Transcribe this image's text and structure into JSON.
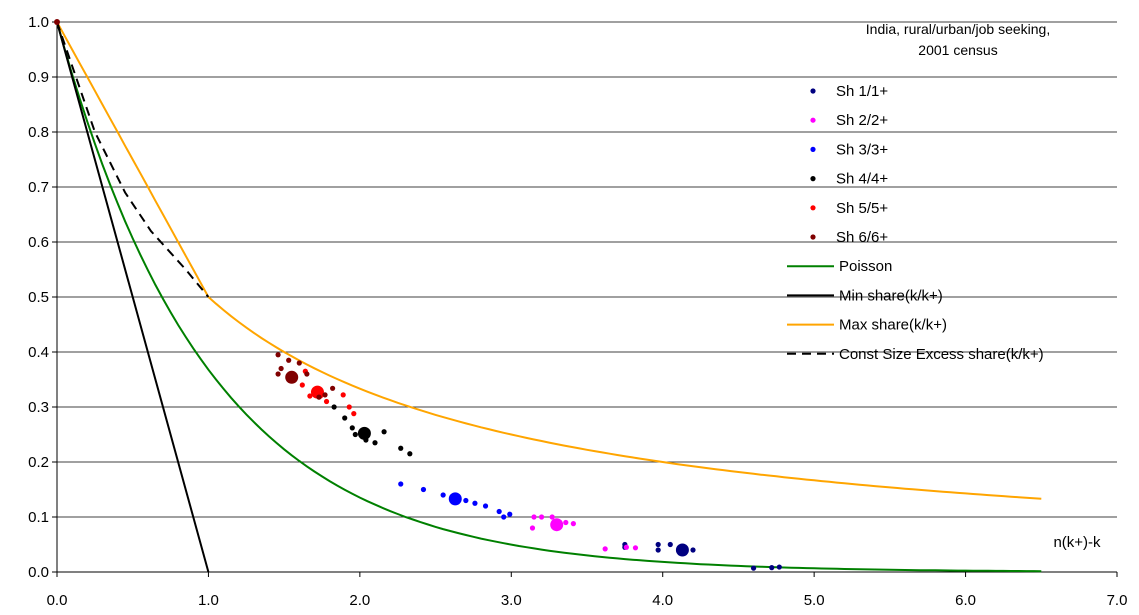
{
  "chart_data": {
    "type": "scatter",
    "title_lines": [
      "India, rural/urban/job seeking,",
      "2001 census"
    ],
    "xlabel": "n(k+)-k",
    "ylabel": "",
    "xlim": [
      0,
      7
    ],
    "ylim": [
      0,
      1
    ],
    "x_ticks": [
      "0.0",
      "1.0",
      "2.0",
      "3.0",
      "4.0",
      "5.0",
      "6.0",
      "7.0"
    ],
    "y_ticks": [
      "0.0",
      "0.1",
      "0.2",
      "0.3",
      "0.4",
      "0.5",
      "0.6",
      "0.7",
      "0.8",
      "0.9",
      "1.0"
    ],
    "grid": "horizontal",
    "legend_position": "top-right",
    "series": [
      {
        "name": "Sh 1/1+",
        "kind": "points",
        "color": "#000080",
        "points": [
          [
            3.75,
            0.05
          ],
          [
            3.75,
            0.045
          ],
          [
            3.97,
            0.05
          ],
          [
            3.97,
            0.04
          ],
          [
            4.05,
            0.05
          ],
          [
            4.2,
            0.04
          ],
          [
            4.6,
            0.007
          ],
          [
            4.72,
            0.008
          ],
          [
            4.77,
            0.009
          ]
        ],
        "highlight": [
          4.13,
          0.04
        ]
      },
      {
        "name": "Sh 2/2+",
        "kind": "points",
        "color": "#ff00ff",
        "points": [
          [
            3.14,
            0.08
          ],
          [
            3.15,
            0.1
          ],
          [
            3.2,
            0.1
          ],
          [
            3.27,
            0.1
          ],
          [
            3.36,
            0.09
          ],
          [
            3.41,
            0.088
          ],
          [
            3.62,
            0.042
          ],
          [
            3.76,
            0.045
          ],
          [
            3.82,
            0.044
          ]
        ],
        "highlight": [
          3.3,
          0.086
        ]
      },
      {
        "name": "Sh 3/3+",
        "kind": "points",
        "color": "#0000ff",
        "points": [
          [
            2.27,
            0.16
          ],
          [
            2.42,
            0.15
          ],
          [
            2.55,
            0.14
          ],
          [
            2.7,
            0.13
          ],
          [
            2.76,
            0.125
          ],
          [
            2.83,
            0.12
          ],
          [
            2.92,
            0.11
          ],
          [
            2.95,
            0.1
          ],
          [
            2.99,
            0.105
          ]
        ],
        "highlight": [
          2.63,
          0.133
        ]
      },
      {
        "name": "Sh 4/4+",
        "kind": "points",
        "color": "#000000",
        "points": [
          [
            1.83,
            0.3
          ],
          [
            1.9,
            0.28
          ],
          [
            1.95,
            0.262
          ],
          [
            2.04,
            0.24
          ],
          [
            2.1,
            0.235
          ],
          [
            2.16,
            0.255
          ],
          [
            2.27,
            0.225
          ],
          [
            2.33,
            0.215
          ],
          [
            1.97,
            0.25
          ]
        ],
        "highlight": [
          2.03,
          0.252
        ]
      },
      {
        "name": "Sh 5/5+",
        "kind": "points",
        "color": "#ff0000",
        "points": [
          [
            1.55,
            0.35
          ],
          [
            1.62,
            0.34
          ],
          [
            1.67,
            0.32
          ],
          [
            1.74,
            0.32
          ],
          [
            1.78,
            0.31
          ],
          [
            1.89,
            0.322
          ],
          [
            1.93,
            0.3
          ],
          [
            1.96,
            0.288
          ],
          [
            1.64,
            0.365
          ]
        ],
        "highlight": [
          1.72,
          0.327
        ]
      },
      {
        "name": "Sh 6/6+",
        "kind": "points",
        "color": "#800000",
        "points": [
          [
            1.46,
            0.395
          ],
          [
            1.46,
            0.36
          ],
          [
            1.48,
            0.37
          ],
          [
            1.53,
            0.385
          ],
          [
            1.6,
            0.38
          ],
          [
            1.65,
            0.36
          ],
          [
            1.73,
            0.318
          ],
          [
            1.77,
            0.322
          ],
          [
            1.82,
            0.334
          ]
        ],
        "highlight": [
          1.55,
          0.354
        ]
      },
      {
        "name": "Poisson",
        "kind": "line",
        "color": "#008000",
        "dash": "",
        "curve": "exp",
        "xrange": [
          0,
          6.5
        ]
      },
      {
        "name": "Min share(k/k+)",
        "kind": "line",
        "color": "#000000",
        "dash": "",
        "points": [
          [
            0,
            1
          ],
          [
            1,
            0
          ]
        ]
      },
      {
        "name": "Max share(k/k+)",
        "kind": "line",
        "color": "#ffa500",
        "dash": "",
        "curve": "max",
        "xrange": [
          0,
          6.5
        ]
      },
      {
        "name": "Const Size Excess share(k/k+)",
        "kind": "line",
        "color": "#000000",
        "dash": "9,6",
        "points": [
          [
            0,
            1
          ],
          [
            0.25,
            0.8
          ],
          [
            0.45,
            0.69
          ],
          [
            0.62,
            0.62
          ],
          [
            0.85,
            0.55
          ],
          [
            1,
            0.5
          ]
        ]
      }
    ],
    "origin_point": {
      "x": 0,
      "y": 1,
      "color": "#800000"
    }
  }
}
